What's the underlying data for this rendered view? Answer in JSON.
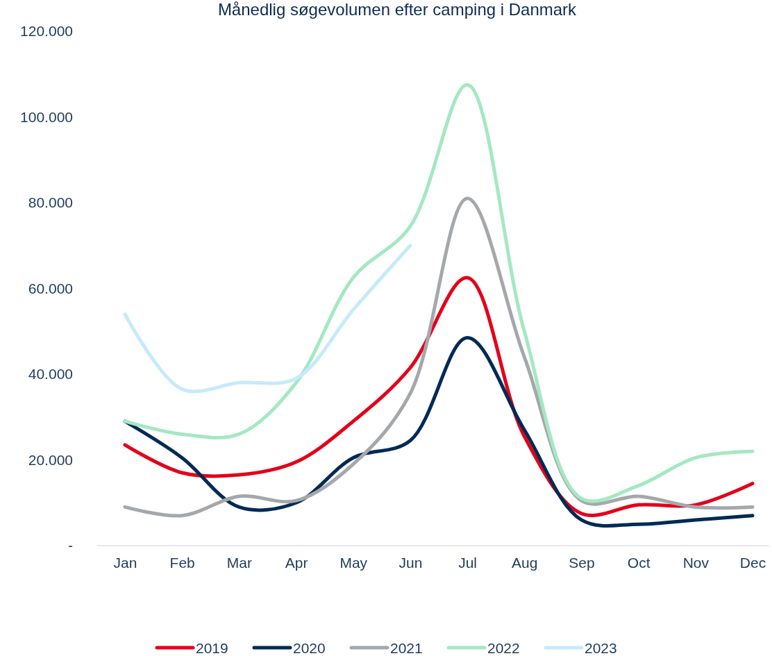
{
  "chart_data": {
    "type": "line",
    "title": "Månedlig søgevolumen efter camping i Danmark",
    "categories": [
      "Jan",
      "Feb",
      "Mar",
      "Apr",
      "May",
      "Jun",
      "Jul",
      "Aug",
      "Sep",
      "Oct",
      "Nov",
      "Dec"
    ],
    "series": [
      {
        "name": "2019",
        "color": "#e3001b",
        "values": [
          23500,
          17000,
          16500,
          19500,
          29000,
          41500,
          62500,
          25500,
          7500,
          9500,
          9500,
          14500
        ]
      },
      {
        "name": "2020",
        "color": "#002a54",
        "values": [
          29000,
          20500,
          9000,
          10000,
          20500,
          24500,
          48500,
          27000,
          6000,
          5000,
          6000,
          7000
        ]
      },
      {
        "name": "2021",
        "color": "#a5a8ab",
        "values": [
          9000,
          7000,
          11500,
          10500,
          19000,
          35500,
          81000,
          44000,
          10500,
          11500,
          9000,
          9000
        ]
      },
      {
        "name": "2022",
        "color": "#a4e8c2",
        "values": [
          29000,
          26000,
          26000,
          38000,
          62500,
          74500,
          107500,
          50000,
          11000,
          14000,
          20500,
          22000
        ]
      },
      {
        "name": "2023",
        "color": "#c6eafc",
        "values": [
          54000,
          36500,
          38000,
          39000,
          55000,
          70000,
          null,
          null,
          null,
          null,
          null,
          null
        ]
      }
    ],
    "ylim": [
      0,
      120000
    ],
    "yticks": [
      {
        "value": 0,
        "label": "-"
      },
      {
        "value": 20000,
        "label": "20.000"
      },
      {
        "value": 40000,
        "label": "40.000"
      },
      {
        "value": 60000,
        "label": "60.000"
      },
      {
        "value": 80000,
        "label": "80.000"
      },
      {
        "value": 100000,
        "label": "100.000"
      },
      {
        "value": 120000,
        "label": "120.000"
      }
    ],
    "legend": "bottom",
    "grid": false,
    "marker": "none",
    "line_style": "solid"
  }
}
